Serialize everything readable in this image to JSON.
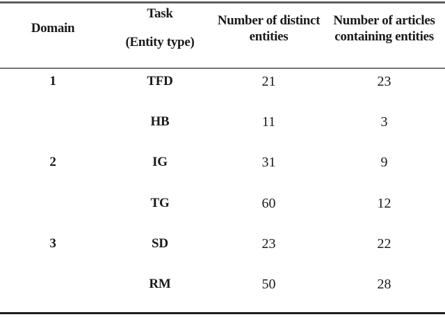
{
  "figure": {
    "background": "#ffffff",
    "text_color": "#1a1a1a",
    "rule_top_color": "#5e5e5e",
    "rule_middle_color": "#767676",
    "rule_bottom_color": "#1f1f1f"
  },
  "table": {
    "header": {
      "domain": "Domain",
      "task_line1": "Task",
      "task_line2": "(Entity type)",
      "distinct_line1": "Number of distinct",
      "distinct_line2": "entities",
      "articles_line1": "Number of articles",
      "articles_line2": "containing entities"
    },
    "rows": [
      {
        "domain": "1",
        "task": "TFD",
        "distinct_entities": "21",
        "articles_containing": "23"
      },
      {
        "domain": "",
        "task": "HB",
        "distinct_entities": "11",
        "articles_containing": "3"
      },
      {
        "domain": "2",
        "task": "IG",
        "distinct_entities": "31",
        "articles_containing": "9"
      },
      {
        "domain": "",
        "task": "TG",
        "distinct_entities": "60",
        "articles_containing": "12"
      },
      {
        "domain": "3",
        "task": "SD",
        "distinct_entities": "23",
        "articles_containing": "22"
      },
      {
        "domain": "",
        "task": "RM",
        "distinct_entities": "50",
        "articles_containing": "28"
      }
    ]
  },
  "chart_data": {
    "type": "table",
    "columns": [
      "Domain",
      "Task (Entity type)",
      "Number of distinct entities",
      "Number of articles containing entities"
    ],
    "rows": [
      [
        "1",
        "TFD",
        21,
        23
      ],
      [
        "",
        "HB",
        11,
        3
      ],
      [
        "2",
        "IG",
        31,
        9
      ],
      [
        "",
        "TG",
        60,
        12
      ],
      [
        "3",
        "SD",
        23,
        22
      ],
      [
        "",
        "RM",
        50,
        28
      ]
    ]
  }
}
